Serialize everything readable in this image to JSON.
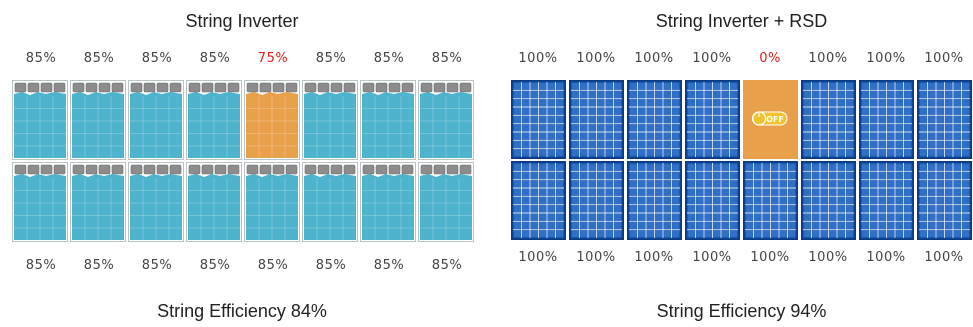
{
  "left": {
    "title": "String Inverter",
    "summary": "String Efficiency 84%",
    "top_labels": [
      "85%",
      "85%",
      "85%",
      "85%",
      "75%",
      "85%",
      "85%",
      "85%"
    ],
    "bottom_labels": [
      "85%",
      "85%",
      "85%",
      "85%",
      "85%",
      "85%",
      "85%",
      "85%"
    ],
    "shaded_index": 4,
    "colors": {
      "panel": "#4eb3cc",
      "shaded": "#e9a04a",
      "cap": "#8c8c8c",
      "alert": "#e0201c"
    }
  },
  "right": {
    "title": "String Inverter + RSD",
    "summary": "String Efficiency 94%",
    "top_labels": [
      "100%",
      "100%",
      "100%",
      "100%",
      "0%",
      "100%",
      "100%",
      "100%"
    ],
    "bottom_labels": [
      "100%",
      "100%",
      "100%",
      "100%",
      "100%",
      "100%",
      "100%",
      "100%"
    ],
    "shaded_index": 4,
    "off_label": "OFF",
    "colors": {
      "panel": "#0d4aa0",
      "cell": "#2f6fc6",
      "shaded": "#e9a04a",
      "switch": "#f1c232",
      "alert": "#e0201c"
    }
  }
}
